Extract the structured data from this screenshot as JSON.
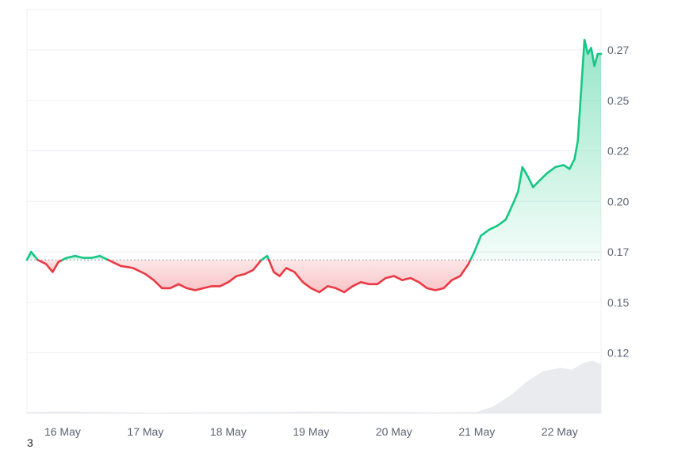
{
  "chart_data": {
    "type": "area",
    "title": "",
    "xlabel": "",
    "ylabel": "",
    "baseline": 0.166,
    "ylim": [
      0.09,
      0.29
    ],
    "yticks": [
      {
        "value": 0.12,
        "label": "0.12"
      },
      {
        "value": 0.145,
        "label": "0.15"
      },
      {
        "value": 0.17,
        "label": "0.17"
      },
      {
        "value": 0.195,
        "label": "0.20"
      },
      {
        "value": 0.22,
        "label": "0.22"
      },
      {
        "value": 0.245,
        "label": "0.25"
      },
      {
        "value": 0.27,
        "label": "0.27"
      }
    ],
    "xticks": [
      {
        "day": 1.0,
        "label": "16 May"
      },
      {
        "day": 2.0,
        "label": "17 May"
      },
      {
        "day": 3.0,
        "label": "18 May"
      },
      {
        "day": 4.0,
        "label": "19 May"
      },
      {
        "day": 5.0,
        "label": "20 May"
      },
      {
        "day": 6.0,
        "label": "21 May"
      },
      {
        "day": 7.0,
        "label": "22 May"
      }
    ],
    "xlim": [
      0.57,
      7.5
    ],
    "colors": {
      "up": "#16c784",
      "down": "#ea3943",
      "up_fill": "#16c784",
      "down_fill": "#ea3943",
      "grid": "#eceff3",
      "volume": "#e9ebef"
    },
    "price_series": {
      "name": "price",
      "points": [
        [
          0.57,
          0.166
        ],
        [
          0.62,
          0.17
        ],
        [
          0.66,
          0.168
        ],
        [
          0.7,
          0.166
        ],
        [
          0.8,
          0.164
        ],
        [
          0.88,
          0.16
        ],
        [
          0.95,
          0.165
        ],
        [
          1.05,
          0.167
        ],
        [
          1.15,
          0.168
        ],
        [
          1.25,
          0.167
        ],
        [
          1.35,
          0.167
        ],
        [
          1.45,
          0.168
        ],
        [
          1.55,
          0.166
        ],
        [
          1.7,
          0.163
        ],
        [
          1.85,
          0.162
        ],
        [
          2.0,
          0.159
        ],
        [
          2.1,
          0.156
        ],
        [
          2.2,
          0.152
        ],
        [
          2.3,
          0.152
        ],
        [
          2.4,
          0.154
        ],
        [
          2.5,
          0.152
        ],
        [
          2.6,
          0.151
        ],
        [
          2.7,
          0.152
        ],
        [
          2.8,
          0.153
        ],
        [
          2.9,
          0.153
        ],
        [
          3.0,
          0.155
        ],
        [
          3.1,
          0.158
        ],
        [
          3.2,
          0.159
        ],
        [
          3.3,
          0.161
        ],
        [
          3.4,
          0.166
        ],
        [
          3.47,
          0.168
        ],
        [
          3.55,
          0.16
        ],
        [
          3.62,
          0.158
        ],
        [
          3.7,
          0.162
        ],
        [
          3.8,
          0.16
        ],
        [
          3.9,
          0.155
        ],
        [
          4.0,
          0.152
        ],
        [
          4.1,
          0.15
        ],
        [
          4.2,
          0.153
        ],
        [
          4.3,
          0.152
        ],
        [
          4.4,
          0.15
        ],
        [
          4.5,
          0.153
        ],
        [
          4.6,
          0.155
        ],
        [
          4.7,
          0.154
        ],
        [
          4.8,
          0.154
        ],
        [
          4.9,
          0.157
        ],
        [
          5.0,
          0.158
        ],
        [
          5.1,
          0.156
        ],
        [
          5.2,
          0.157
        ],
        [
          5.3,
          0.155
        ],
        [
          5.4,
          0.152
        ],
        [
          5.5,
          0.151
        ],
        [
          5.6,
          0.152
        ],
        [
          5.7,
          0.156
        ],
        [
          5.8,
          0.158
        ],
        [
          5.9,
          0.164
        ],
        [
          5.97,
          0.17
        ],
        [
          6.05,
          0.178
        ],
        [
          6.15,
          0.181
        ],
        [
          6.25,
          0.183
        ],
        [
          6.35,
          0.186
        ],
        [
          6.45,
          0.195
        ],
        [
          6.5,
          0.2
        ],
        [
          6.55,
          0.212
        ],
        [
          6.62,
          0.207
        ],
        [
          6.68,
          0.202
        ],
        [
          6.75,
          0.205
        ],
        [
          6.85,
          0.209
        ],
        [
          6.95,
          0.212
        ],
        [
          7.05,
          0.213
        ],
        [
          7.12,
          0.211
        ],
        [
          7.18,
          0.216
        ],
        [
          7.22,
          0.225
        ],
        [
          7.26,
          0.25
        ],
        [
          7.3,
          0.275
        ],
        [
          7.34,
          0.268
        ],
        [
          7.38,
          0.271
        ],
        [
          7.42,
          0.262
        ],
        [
          7.46,
          0.268
        ],
        [
          7.5,
          0.268
        ]
      ]
    },
    "volume_series": {
      "name": "volume",
      "points": [
        [
          0.57,
          0.8
        ],
        [
          1.0,
          1.0
        ],
        [
          1.5,
          0.8
        ],
        [
          2.0,
          0.5
        ],
        [
          2.5,
          0.6
        ],
        [
          3.0,
          0.7
        ],
        [
          3.5,
          0.8
        ],
        [
          4.0,
          1.0
        ],
        [
          4.5,
          0.9
        ],
        [
          5.0,
          0.8
        ],
        [
          5.5,
          0.6
        ],
        [
          6.0,
          0.9
        ],
        [
          6.2,
          4
        ],
        [
          6.4,
          10
        ],
        [
          6.6,
          18
        ],
        [
          6.8,
          24
        ],
        [
          7.0,
          26
        ],
        [
          7.15,
          25
        ],
        [
          7.3,
          29
        ],
        [
          7.4,
          30
        ],
        [
          7.5,
          28
        ]
      ],
      "max": 100
    }
  },
  "footnote": "3"
}
